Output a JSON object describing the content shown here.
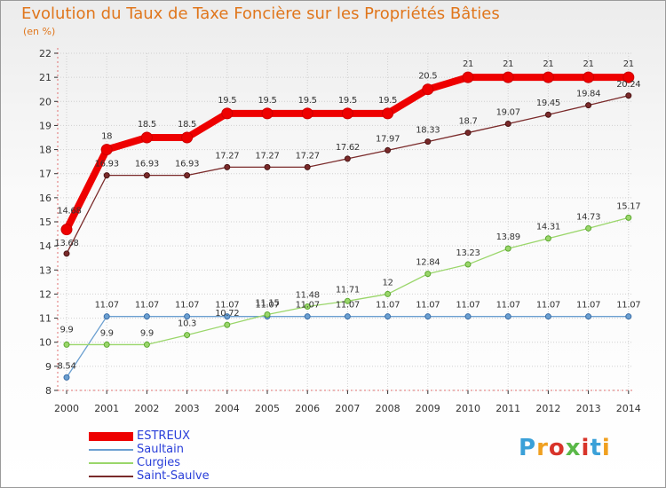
{
  "title": "Evolution du Taux de Taxe Foncière sur les Propriétés Bâties",
  "unit_label": "(en %)",
  "logo": {
    "text": "Proxiti"
  },
  "chart_data": {
    "type": "line",
    "title": "Evolution du Taux de Taxe Foncière sur les Propriétés Bâties",
    "ylabel": "(en %)",
    "xlabel": "",
    "ylim": [
      8,
      22
    ],
    "grid": true,
    "categories": [
      "2000",
      "2001",
      "2002",
      "2003",
      "2004",
      "2005",
      "2006",
      "2007",
      "2008",
      "2009",
      "2010",
      "2011",
      "2012",
      "2013",
      "2014"
    ],
    "y_ticks": [
      "8",
      "9",
      "10",
      "11",
      "12",
      "13",
      "14",
      "15",
      "16",
      "17",
      "18",
      "19",
      "20",
      "21",
      "22"
    ],
    "series": [
      {
        "name": "ESTREUX",
        "color": "#ee0000",
        "values": [
          14.68,
          18,
          18.5,
          18.5,
          19.5,
          19.5,
          19.5,
          19.5,
          19.5,
          20.5,
          21,
          21,
          21,
          21,
          21
        ],
        "labels": [
          "14.68",
          "18",
          "18.5",
          "18.5",
          "19.5",
          "19.5",
          "19.5",
          "19.5",
          "19.5",
          "20.5",
          "21",
          "21",
          "21",
          "21",
          "21"
        ]
      },
      {
        "name": "Saultain",
        "color": "#6b9fd0",
        "values": [
          8.54,
          11.07,
          11.07,
          11.07,
          11.07,
          11.07,
          11.07,
          11.07,
          11.07,
          11.07,
          11.07,
          11.07,
          11.07,
          11.07,
          11.07
        ],
        "labels": [
          "8.54",
          "11.07",
          "11.07",
          "11.07",
          "11.07",
          "11.07",
          "11.07",
          "11.07",
          "11.07",
          "11.07",
          "11.07",
          "11.07",
          "11.07",
          "11.07",
          "11.07"
        ]
      },
      {
        "name": "Curgies",
        "color": "#9ad66a",
        "values": [
          9.9,
          9.9,
          9.9,
          10.3,
          10.72,
          11.15,
          11.48,
          11.71,
          12,
          12.84,
          13.23,
          13.89,
          14.31,
          14.73,
          15.17
        ],
        "labels": [
          "9.9",
          "9.9",
          "9.9",
          "10.3",
          "10.72",
          "11.15",
          "11.48",
          "11.71",
          "12",
          "12.84",
          "13.23",
          "13.89",
          "14.31",
          "14.73",
          "15.17"
        ]
      },
      {
        "name": "Saint-Saulve",
        "color": "#7a2a2a",
        "values": [
          13.68,
          16.93,
          16.93,
          16.93,
          17.27,
          17.27,
          17.27,
          17.62,
          17.97,
          18.33,
          18.7,
          19.07,
          19.45,
          19.84,
          20.24
        ],
        "labels": [
          "13.68",
          "16.93",
          "16.93",
          "16.93",
          "17.27",
          "17.27",
          "17.27",
          "17.62",
          "17.97",
          "18.33",
          "18.7",
          "19.07",
          "19.45",
          "19.84",
          "20.24"
        ]
      }
    ]
  }
}
